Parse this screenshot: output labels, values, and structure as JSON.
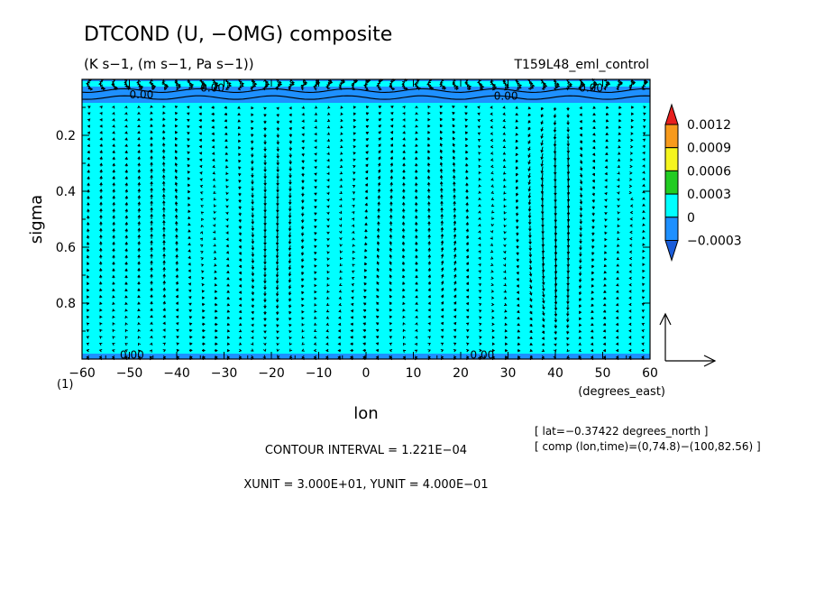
{
  "chart_data": {
    "type": "heatmap",
    "title": "DTCOND (U, −OMG) composite",
    "subtitle": "(K s−1, (m s−1, Pa s−1))",
    "run_name": "T159L48_eml_control",
    "xlabel": "lon",
    "xunits": "(degrees_east)",
    "ylabel": "sigma",
    "xlim": [
      -60,
      60
    ],
    "ylim": [
      1.0,
      0.0
    ],
    "x_ticks": [
      -60,
      -50,
      -40,
      -30,
      -20,
      -10,
      0,
      10,
      20,
      30,
      40,
      50,
      60
    ],
    "x_tick_labels": [
      "−60",
      "−50",
      "−40",
      "−30",
      "−20",
      "−10",
      "0",
      "10",
      "20",
      "30",
      "40",
      "50",
      "60"
    ],
    "y_ticks": [
      0.2,
      0.4,
      0.6,
      0.8
    ],
    "y_tick_labels": [
      "0.2",
      "0.4",
      "0.6",
      "0.8"
    ],
    "corner_label": "(1)",
    "colorbar": {
      "levels": [
        "0.0012",
        "0.0009",
        "0.0006",
        "0.0003",
        "0",
        "−0.0003"
      ],
      "colors": [
        "#e8201e",
        "#f79a1c",
        "#f5f51e",
        "#22cc22",
        "#00ffff",
        "#1e90ff",
        "#1a5cd8"
      ]
    },
    "contour_labels": [
      "0.00",
      "0.00",
      "0.00",
      "0.00",
      "0.00"
    ],
    "info_lat": "[ lat=−0.37422 degrees_north ]",
    "info_comp": "[ comp (lon,time)=(0,74.8)−(100,82.56) ]",
    "contour_interval": "CONTOUR INTERVAL = 1.221E−04",
    "units_text": "XUNIT = 3.000E+01, YUNIT = 4.000E−01"
  }
}
